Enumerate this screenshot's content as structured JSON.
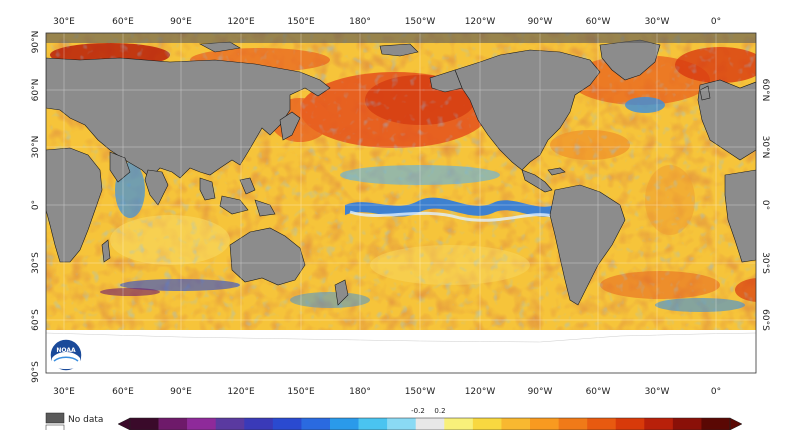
{
  "map": {
    "lon_ticks": [
      "30°E",
      "60°E",
      "90°E",
      "120°E",
      "150°E",
      "180°",
      "150°W",
      "120°W",
      "90°W",
      "60°W",
      "30°W",
      "0°"
    ],
    "lat_ticks_left": [
      "90°N",
      "60°N",
      "30°N",
      "0°",
      "30°S",
      "60°S",
      "90°S"
    ],
    "lat_ticks_right": [
      "60°N",
      "30°N",
      "0°",
      "30°S",
      "60°S"
    ],
    "colors": {
      "land": "#8c8c8c",
      "no_data": "#5a5a5a",
      "ice": "#ffffff",
      "ocean_warm": "#f6c43a",
      "ocean_hot": "#e4501c",
      "ocean_cool": "#3a8fe0",
      "coast": "#1a1a1a"
    }
  },
  "legend": {
    "no_data_label": "No data",
    "center_labels": [
      "-0.2",
      "0.2"
    ],
    "colors": [
      "#3a0a2a",
      "#6e1a6a",
      "#8e2a9a",
      "#5a3aa0",
      "#3a3ab8",
      "#2a4ad0",
      "#2a6ae0",
      "#2a9aea",
      "#4ac4f0",
      "#8adaf4",
      "#e8e8e8",
      "#f8f07a",
      "#f8d840",
      "#f8b830",
      "#f89a20",
      "#f07a18",
      "#e85a10",
      "#d83a0a",
      "#b8200a",
      "#8a1008",
      "#5a0804"
    ]
  },
  "logo": {
    "text": "NOAA",
    "icon": "noaa-logo-icon"
  }
}
